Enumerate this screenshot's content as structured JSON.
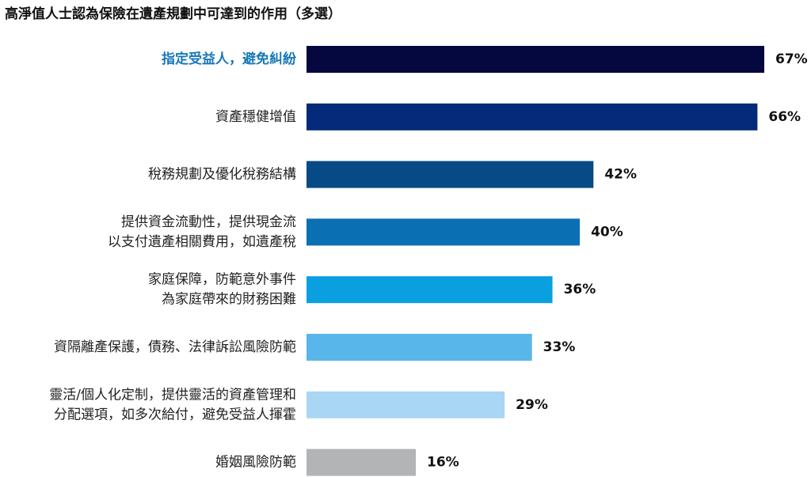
{
  "chart_data": {
    "type": "bar",
    "orientation": "horizontal",
    "title": "高淨值人士認為保險在遺產規劃中可達到的作用（多選）",
    "categories": [
      [
        "指定受益人，避免糾紛"
      ],
      [
        "資產穩健增值"
      ],
      [
        "稅務規劃及優化稅務結構"
      ],
      [
        "提供資金流動性，提供現金流",
        "以支付遺產相關費用，如遺產稅"
      ],
      [
        "家庭保障，防範意外事件",
        "為家庭帶來的財務困難"
      ],
      [
        "資隔離產保護，債務、法律訴訟風險防範"
      ],
      [
        "靈活/個人化定制，提供靈活的資產管理和",
        "分配選項，如多次給付，避免受益人揮霍"
      ],
      [
        "婚姻風險防範"
      ]
    ],
    "values": [
      67,
      66,
      42,
      40,
      36,
      33,
      29,
      16
    ],
    "value_labels": [
      "67%",
      "66%",
      "42%",
      "40%",
      "36%",
      "33%",
      "29%",
      "16%"
    ],
    "bar_colors": [
      "#05073f",
      "#062a7a",
      "#064a86",
      "#0a6fb3",
      "#0aa0e0",
      "#58b6ea",
      "#a9d6f3",
      "#b3b4b6"
    ],
    "highlight_color": "#1778b8",
    "highlight_index": 0,
    "xlim": [
      0,
      100
    ],
    "grid": false,
    "legend": "none"
  }
}
